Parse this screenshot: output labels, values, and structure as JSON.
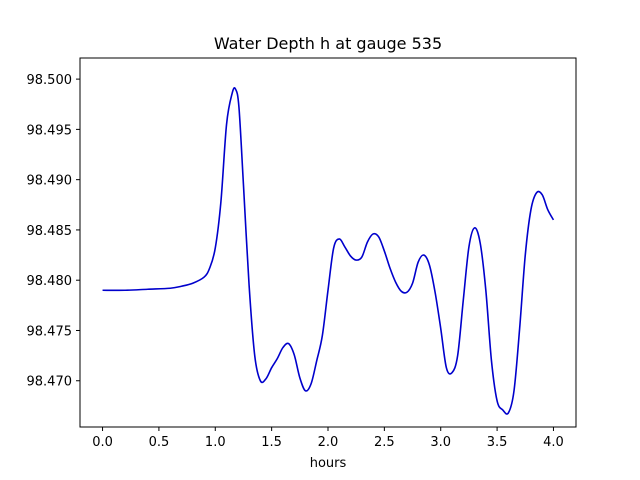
{
  "chart_data": {
    "type": "line",
    "title": "Water Depth h at gauge 535",
    "xlabel": "hours",
    "ylabel": "",
    "xlim": [
      -0.2,
      4.2
    ],
    "ylim": [
      98.4654,
      98.5021
    ],
    "xticks": [
      0.0,
      0.5,
      1.0,
      1.5,
      2.0,
      2.5,
      3.0,
      3.5,
      4.0
    ],
    "xtick_labels": [
      "0.0",
      "0.5",
      "1.0",
      "1.5",
      "2.0",
      "2.5",
      "3.0",
      "3.5",
      "4.0"
    ],
    "yticks": [
      98.47,
      98.475,
      98.48,
      98.485,
      98.49,
      98.495,
      98.5
    ],
    "ytick_labels": [
      "98.470",
      "98.475",
      "98.480",
      "98.485",
      "98.490",
      "98.495",
      "98.500"
    ],
    "grid": false,
    "legend": "none",
    "series": [
      {
        "color": "#0000cc",
        "x": [
          0.0,
          0.2,
          0.4,
          0.6,
          0.7,
          0.8,
          0.9,
          0.95,
          1.0,
          1.05,
          1.1,
          1.15,
          1.18,
          1.21,
          1.25,
          1.3,
          1.35,
          1.4,
          1.45,
          1.5,
          1.55,
          1.6,
          1.65,
          1.7,
          1.75,
          1.8,
          1.85,
          1.9,
          1.95,
          2.0,
          2.05,
          2.1,
          2.15,
          2.2,
          2.25,
          2.3,
          2.35,
          2.4,
          2.45,
          2.5,
          2.55,
          2.6,
          2.65,
          2.7,
          2.75,
          2.8,
          2.85,
          2.9,
          2.95,
          3.0,
          3.05,
          3.1,
          3.15,
          3.2,
          3.25,
          3.3,
          3.35,
          3.4,
          3.45,
          3.5,
          3.55,
          3.6,
          3.65,
          3.7,
          3.75,
          3.8,
          3.85,
          3.9,
          3.95,
          4.0
        ],
        "y": [
          98.479,
          98.479,
          98.4791,
          98.4792,
          98.4794,
          98.4797,
          98.4803,
          98.4812,
          98.4832,
          98.4878,
          98.4955,
          98.4986,
          98.499,
          98.4972,
          98.4895,
          98.4795,
          98.4725,
          98.47,
          98.4702,
          98.4713,
          98.4722,
          98.4733,
          98.4737,
          98.4726,
          98.4703,
          98.469,
          98.4697,
          98.472,
          98.4745,
          98.479,
          98.4832,
          98.4841,
          98.4833,
          98.4824,
          98.482,
          98.4823,
          98.4838,
          98.4846,
          98.4843,
          98.4829,
          98.4812,
          98.4798,
          98.4789,
          98.4788,
          98.4797,
          98.4818,
          98.4825,
          98.4815,
          98.4788,
          98.4752,
          98.4713,
          98.4708,
          98.4725,
          98.478,
          98.4833,
          98.4852,
          98.4837,
          98.479,
          98.472,
          98.468,
          98.4671,
          98.4668,
          98.469,
          98.4752,
          98.4825,
          98.487,
          98.4887,
          98.4885,
          98.487,
          98.486
        ]
      }
    ]
  }
}
